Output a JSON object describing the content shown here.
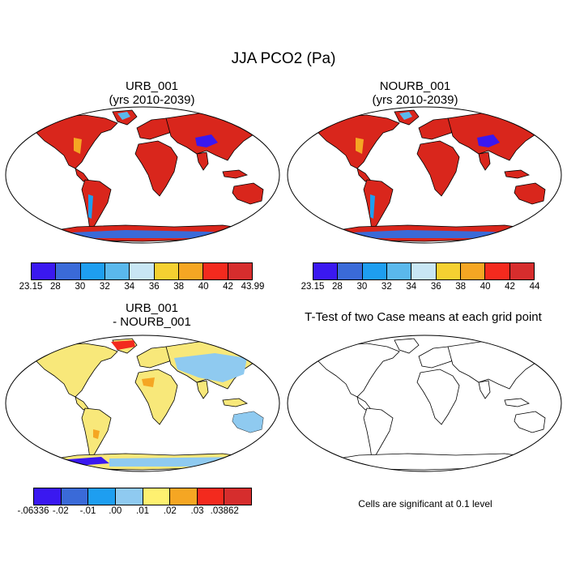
{
  "figure": {
    "title": "JJA PCO2 (Pa)"
  },
  "panels": {
    "p1": {
      "title_line1": "URB_001",
      "title_line2": "(yrs 2010-2039)"
    },
    "p2": {
      "title_line1": "NOURB_001",
      "title_line2": "(yrs 2010-2039)"
    },
    "p3": {
      "title_line1": "URB_001",
      "title_line2": "- NOURB_001"
    },
    "p4": {
      "title_line1": "T-Test of two Case means at each grid point",
      "note": "Cells are significant at 0.1 level"
    }
  },
  "colorbars": {
    "cb1": {
      "colors": [
        "#3a18f0",
        "#3a6ad8",
        "#1e9ef0",
        "#5ab8ec",
        "#c8e6f4",
        "#f5d031",
        "#f5a623",
        "#f32a1e",
        "#d62d2d"
      ],
      "labels": [
        "23.15",
        "28",
        "30",
        "32",
        "34",
        "36",
        "38",
        "40",
        "42",
        "43.99"
      ]
    },
    "cb2": {
      "colors": [
        "#3a18f0",
        "#3a6ad8",
        "#1e9ef0",
        "#5ab8ec",
        "#c8e6f4",
        "#f5d031",
        "#f5a623",
        "#f32a1e",
        "#d62d2d"
      ],
      "labels": [
        "23.15",
        "28",
        "30",
        "32",
        "34",
        "36",
        "38",
        "40",
        "42",
        "44"
      ]
    },
    "cb3": {
      "colors": [
        "#3a18f0",
        "#3a6ad8",
        "#1e9ef0",
        "#8fcaf0",
        "#fef070",
        "#f5a623",
        "#f32a1e",
        "#d62d2d"
      ],
      "labels": [
        "-.06336",
        "-.02",
        "-.01",
        ".00",
        ".01",
        ".02",
        ".03",
        ".03862"
      ]
    }
  },
  "colors": {
    "land_fill_abs": "#d9261c",
    "land_fill_diff": "#f8e87a",
    "coast": "#000000"
  }
}
